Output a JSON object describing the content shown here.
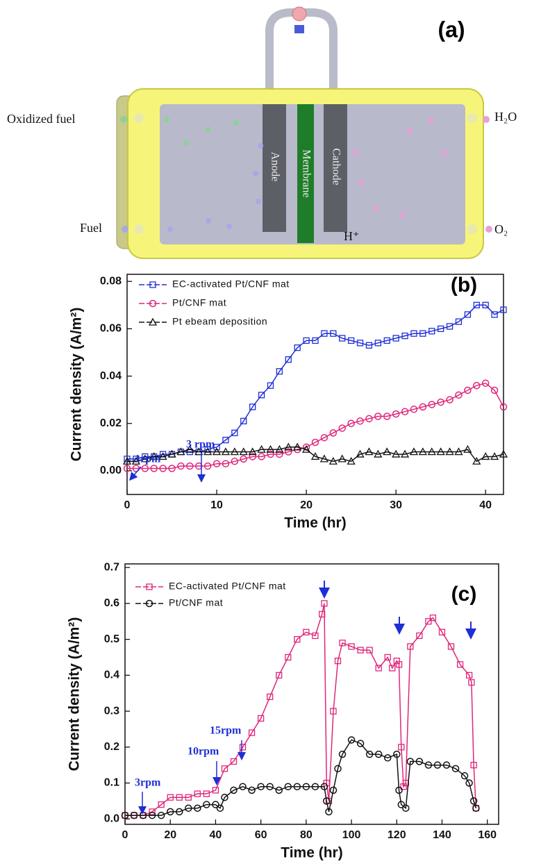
{
  "diagram": {
    "label": "(a)",
    "left_top": "Oxidized fuel",
    "left_bottom": "Fuel",
    "right_top": "H₂O",
    "right_bottom": "O₂",
    "anode": "Anode",
    "membrane": "Membrane",
    "cathode": "Cathode",
    "proton": "H⁺"
  },
  "chart_data": [
    {
      "type": "line",
      "panel_label": "(b)",
      "x_label": "Time (hr)",
      "y_label": "Current density (A/m²)",
      "xlim": [
        0,
        42
      ],
      "xticks": [
        0,
        10,
        20,
        30,
        40
      ],
      "ylim": [
        -0.01,
        0.083
      ],
      "yticks": [
        {
          "value": 0,
          "label": "0.00"
        },
        {
          "value": 0.02,
          "label": "0.02"
        },
        {
          "value": 0.04,
          "label": "0.04"
        },
        {
          "value": 0.06,
          "label": "0.06"
        },
        {
          "value": 0.08,
          "label": "0.08"
        }
      ],
      "annotations": [
        "1rpm",
        "3 rpm"
      ],
      "series": [
        {
          "name": "EC-activated Pt/CNF mat",
          "color": "#1f2fd6",
          "marker": "square",
          "x": [
            0,
            1,
            2,
            3,
            4,
            5,
            6,
            7,
            8,
            9,
            10,
            11,
            12,
            13,
            14,
            15,
            16,
            17,
            18,
            19,
            20,
            21,
            22,
            23,
            24,
            25,
            26,
            27,
            28,
            29,
            30,
            31,
            32,
            33,
            34,
            35,
            36,
            37,
            38,
            39,
            40,
            41,
            42
          ],
          "values": [
            0.005,
            0.005,
            0.006,
            0.006,
            0.007,
            0.007,
            0.008,
            0.008,
            0.008,
            0.009,
            0.01,
            0.013,
            0.016,
            0.021,
            0.027,
            0.032,
            0.036,
            0.042,
            0.047,
            0.052,
            0.055,
            0.055,
            0.058,
            0.058,
            0.056,
            0.055,
            0.054,
            0.053,
            0.054,
            0.055,
            0.056,
            0.057,
            0.058,
            0.058,
            0.059,
            0.06,
            0.061,
            0.063,
            0.066,
            0.07,
            0.07,
            0.066,
            0.068
          ]
        },
        {
          "name": "Pt/CNF mat",
          "color": "#e0257a",
          "marker": "circle",
          "x": [
            0,
            1,
            2,
            3,
            4,
            5,
            6,
            7,
            8,
            9,
            10,
            11,
            12,
            13,
            14,
            15,
            16,
            17,
            18,
            19,
            20,
            21,
            22,
            23,
            24,
            25,
            26,
            27,
            28,
            29,
            30,
            31,
            32,
            33,
            34,
            35,
            36,
            37,
            38,
            39,
            40,
            41,
            42
          ],
          "values": [
            0.001,
            0.001,
            0.001,
            0.001,
            0.001,
            0.001,
            0.002,
            0.002,
            0.002,
            0.002,
            0.003,
            0.003,
            0.004,
            0.005,
            0.006,
            0.006,
            0.007,
            0.007,
            0.008,
            0.009,
            0.01,
            0.012,
            0.014,
            0.016,
            0.018,
            0.02,
            0.021,
            0.022,
            0.023,
            0.023,
            0.024,
            0.025,
            0.026,
            0.027,
            0.028,
            0.029,
            0.03,
            0.032,
            0.034,
            0.036,
            0.037,
            0.034,
            0.027
          ]
        },
        {
          "name": "Pt ebeam deposition",
          "color": "#111111",
          "marker": "triangle",
          "x": [
            0,
            1,
            2,
            3,
            4,
            5,
            6,
            7,
            8,
            9,
            10,
            11,
            12,
            13,
            14,
            15,
            16,
            17,
            18,
            19,
            20,
            21,
            22,
            23,
            24,
            25,
            26,
            27,
            28,
            29,
            30,
            31,
            32,
            33,
            34,
            35,
            36,
            37,
            38,
            39,
            40,
            41,
            42
          ],
          "values": [
            0.004,
            0.004,
            0.005,
            0.006,
            0.006,
            0.007,
            0.008,
            0.009,
            0.008,
            0.008,
            0.008,
            0.008,
            0.008,
            0.008,
            0.008,
            0.009,
            0.009,
            0.009,
            0.01,
            0.01,
            0.009,
            0.006,
            0.005,
            0.004,
            0.005,
            0.004,
            0.007,
            0.008,
            0.007,
            0.008,
            0.007,
            0.007,
            0.008,
            0.008,
            0.008,
            0.008,
            0.008,
            0.008,
            0.009,
            0.004,
            0.006,
            0.006,
            0.007
          ]
        }
      ]
    },
    {
      "type": "line",
      "panel_label": "(c)",
      "x_label": "Time (hr)",
      "y_label": "Current density (A/m²)",
      "xlim": [
        0,
        165
      ],
      "xticks": [
        0,
        20,
        40,
        60,
        80,
        100,
        120,
        140,
        160
      ],
      "ylim": [
        -0.015,
        0.71
      ],
      "yticks": [
        {
          "value": 0,
          "label": "0.0"
        },
        0.1,
        0.2,
        0.3,
        0.4,
        0.5,
        0.6,
        0.7
      ],
      "annotations": [
        "3rpm",
        "10rpm",
        "15rpm"
      ],
      "series": [
        {
          "name": "EC-activated Pt/CNF mat",
          "color": "#e0257a",
          "marker": "square",
          "x": [
            0,
            4,
            8,
            12,
            16,
            20,
            24,
            28,
            32,
            36,
            40,
            44,
            48,
            52,
            56,
            60,
            64,
            68,
            72,
            76,
            80,
            84,
            87,
            88,
            89,
            90,
            92,
            94,
            96,
            100,
            104,
            108,
            112,
            116,
            118,
            120,
            121,
            122,
            123,
            124,
            126,
            130,
            134,
            136,
            140,
            144,
            148,
            152,
            153,
            154,
            155
          ],
          "values": [
            0.01,
            0.01,
            0.01,
            0.02,
            0.04,
            0.06,
            0.06,
            0.06,
            0.07,
            0.07,
            0.08,
            0.14,
            0.16,
            0.2,
            0.24,
            0.28,
            0.34,
            0.4,
            0.45,
            0.5,
            0.52,
            0.51,
            0.57,
            0.6,
            0.1,
            0.05,
            0.3,
            0.44,
            0.49,
            0.48,
            0.47,
            0.47,
            0.42,
            0.45,
            0.42,
            0.44,
            0.43,
            0.2,
            0.09,
            0.1,
            0.48,
            0.51,
            0.55,
            0.56,
            0.52,
            0.48,
            0.43,
            0.4,
            0.38,
            0.15,
            0.03
          ]
        },
        {
          "name": "Pt/CNF mat",
          "color": "#111111",
          "marker": "circle",
          "x": [
            0,
            4,
            8,
            12,
            16,
            20,
            24,
            28,
            32,
            36,
            40,
            42,
            44,
            48,
            52,
            56,
            60,
            64,
            68,
            72,
            76,
            80,
            84,
            88,
            89,
            90,
            92,
            94,
            96,
            100,
            104,
            108,
            112,
            116,
            120,
            121,
            122,
            124,
            126,
            130,
            134,
            138,
            142,
            146,
            150,
            152,
            154,
            155
          ],
          "values": [
            0.01,
            0.01,
            0.01,
            0.01,
            0.01,
            0.02,
            0.02,
            0.03,
            0.03,
            0.04,
            0.04,
            0.03,
            0.06,
            0.08,
            0.09,
            0.08,
            0.09,
            0.09,
            0.08,
            0.09,
            0.09,
            0.09,
            0.09,
            0.09,
            0.05,
            0.02,
            0.08,
            0.14,
            0.18,
            0.22,
            0.21,
            0.18,
            0.18,
            0.17,
            0.18,
            0.08,
            0.04,
            0.03,
            0.16,
            0.16,
            0.15,
            0.15,
            0.15,
            0.14,
            0.12,
            0.1,
            0.05,
            0.03
          ]
        }
      ]
    }
  ]
}
